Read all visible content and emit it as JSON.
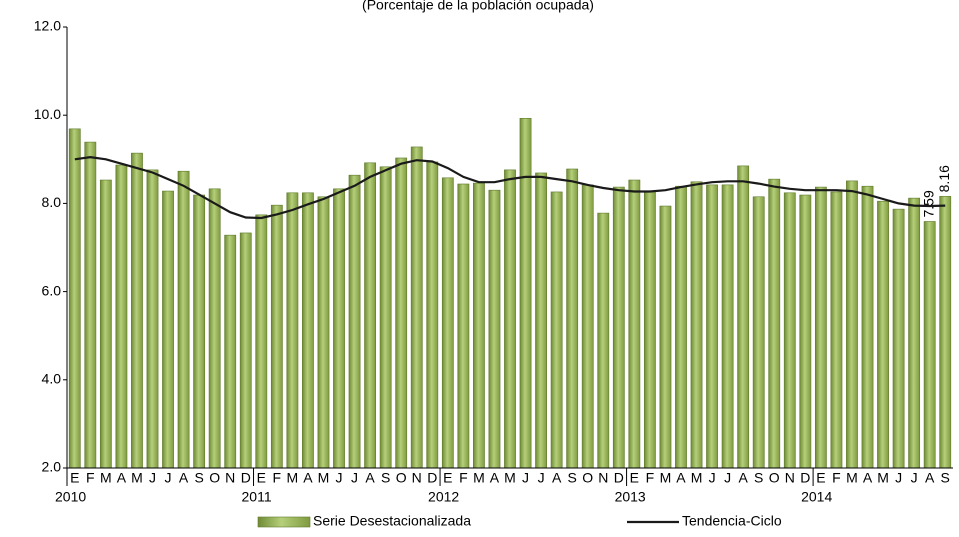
{
  "chart_data": {
    "type": "bar-line",
    "subtitle": "(Porcentaje de la población ocupada)",
    "categories": [
      "E",
      "F",
      "M",
      "A",
      "M",
      "J",
      "J",
      "A",
      "S",
      "O",
      "N",
      "D",
      "E",
      "F",
      "M",
      "A",
      "M",
      "J",
      "J",
      "A",
      "S",
      "O",
      "N",
      "D",
      "E",
      "F",
      "M",
      "A",
      "M",
      "J",
      "J",
      "A",
      "S",
      "O",
      "N",
      "D",
      "E",
      "F",
      "M",
      "A",
      "M",
      "J",
      "J",
      "A",
      "S",
      "O",
      "N",
      "D",
      "E",
      "F",
      "M",
      "A",
      "M",
      "J",
      "J",
      "A",
      "S"
    ],
    "year_groups": [
      "2010",
      "2011",
      "2012",
      "2013",
      "2014"
    ],
    "series": [
      {
        "name": "Serie Desestacionalizada",
        "type": "bar",
        "color": "#9bbb59",
        "values": [
          9.69,
          9.39,
          8.53,
          8.87,
          9.14,
          8.76,
          8.28,
          8.73,
          8.19,
          8.33,
          7.28,
          7.33,
          7.74,
          7.96,
          8.24,
          8.24,
          8.15,
          8.33,
          8.64,
          8.92,
          8.83,
          9.03,
          9.28,
          8.94,
          8.58,
          8.44,
          8.46,
          8.3,
          8.76,
          9.93,
          8.69,
          8.26,
          8.78,
          8.42,
          7.78,
          8.37,
          8.53,
          8.26,
          7.94,
          8.39,
          8.49,
          8.42,
          8.42,
          8.85,
          8.15,
          8.55,
          8.24,
          8.19,
          8.37,
          8.26,
          8.51,
          8.39,
          8.05,
          7.87,
          8.12,
          7.59,
          8.16
        ],
        "value_labels": [
          null,
          null,
          null,
          null,
          null,
          null,
          null,
          null,
          null,
          null,
          null,
          null,
          null,
          null,
          null,
          null,
          null,
          null,
          null,
          null,
          null,
          null,
          null,
          null,
          null,
          null,
          null,
          null,
          null,
          null,
          null,
          null,
          null,
          null,
          null,
          null,
          null,
          null,
          null,
          null,
          null,
          null,
          null,
          null,
          null,
          null,
          null,
          null,
          null,
          null,
          null,
          null,
          null,
          null,
          null,
          "7.59",
          "8.16"
        ]
      },
      {
        "name": "Tendencia-Ciclo",
        "type": "line",
        "color": "#1a1a1a",
        "values": [
          9.0,
          9.05,
          9.0,
          8.9,
          8.8,
          8.7,
          8.55,
          8.4,
          8.2,
          8.0,
          7.8,
          7.68,
          7.67,
          7.75,
          7.85,
          7.98,
          8.1,
          8.25,
          8.4,
          8.6,
          8.75,
          8.9,
          8.98,
          8.95,
          8.8,
          8.6,
          8.48,
          8.48,
          8.55,
          8.6,
          8.6,
          8.55,
          8.5,
          8.42,
          8.35,
          8.3,
          8.27,
          8.27,
          8.3,
          8.37,
          8.43,
          8.48,
          8.5,
          8.5,
          8.45,
          8.38,
          8.33,
          8.3,
          8.3,
          8.3,
          8.28,
          8.2,
          8.1,
          8.0,
          7.95,
          7.94,
          7.95
        ]
      }
    ],
    "ylim": [
      2,
      12
    ],
    "yticks": [
      {
        "value": 2,
        "label": "2.0"
      },
      {
        "value": 4,
        "label": "4.0"
      },
      {
        "value": 6,
        "label": "6.0"
      },
      {
        "value": 8,
        "label": "8.0"
      },
      {
        "value": 10,
        "label": "10.0"
      },
      {
        "value": 12,
        "label": "12.0"
      }
    ],
    "legend": "bottom"
  }
}
